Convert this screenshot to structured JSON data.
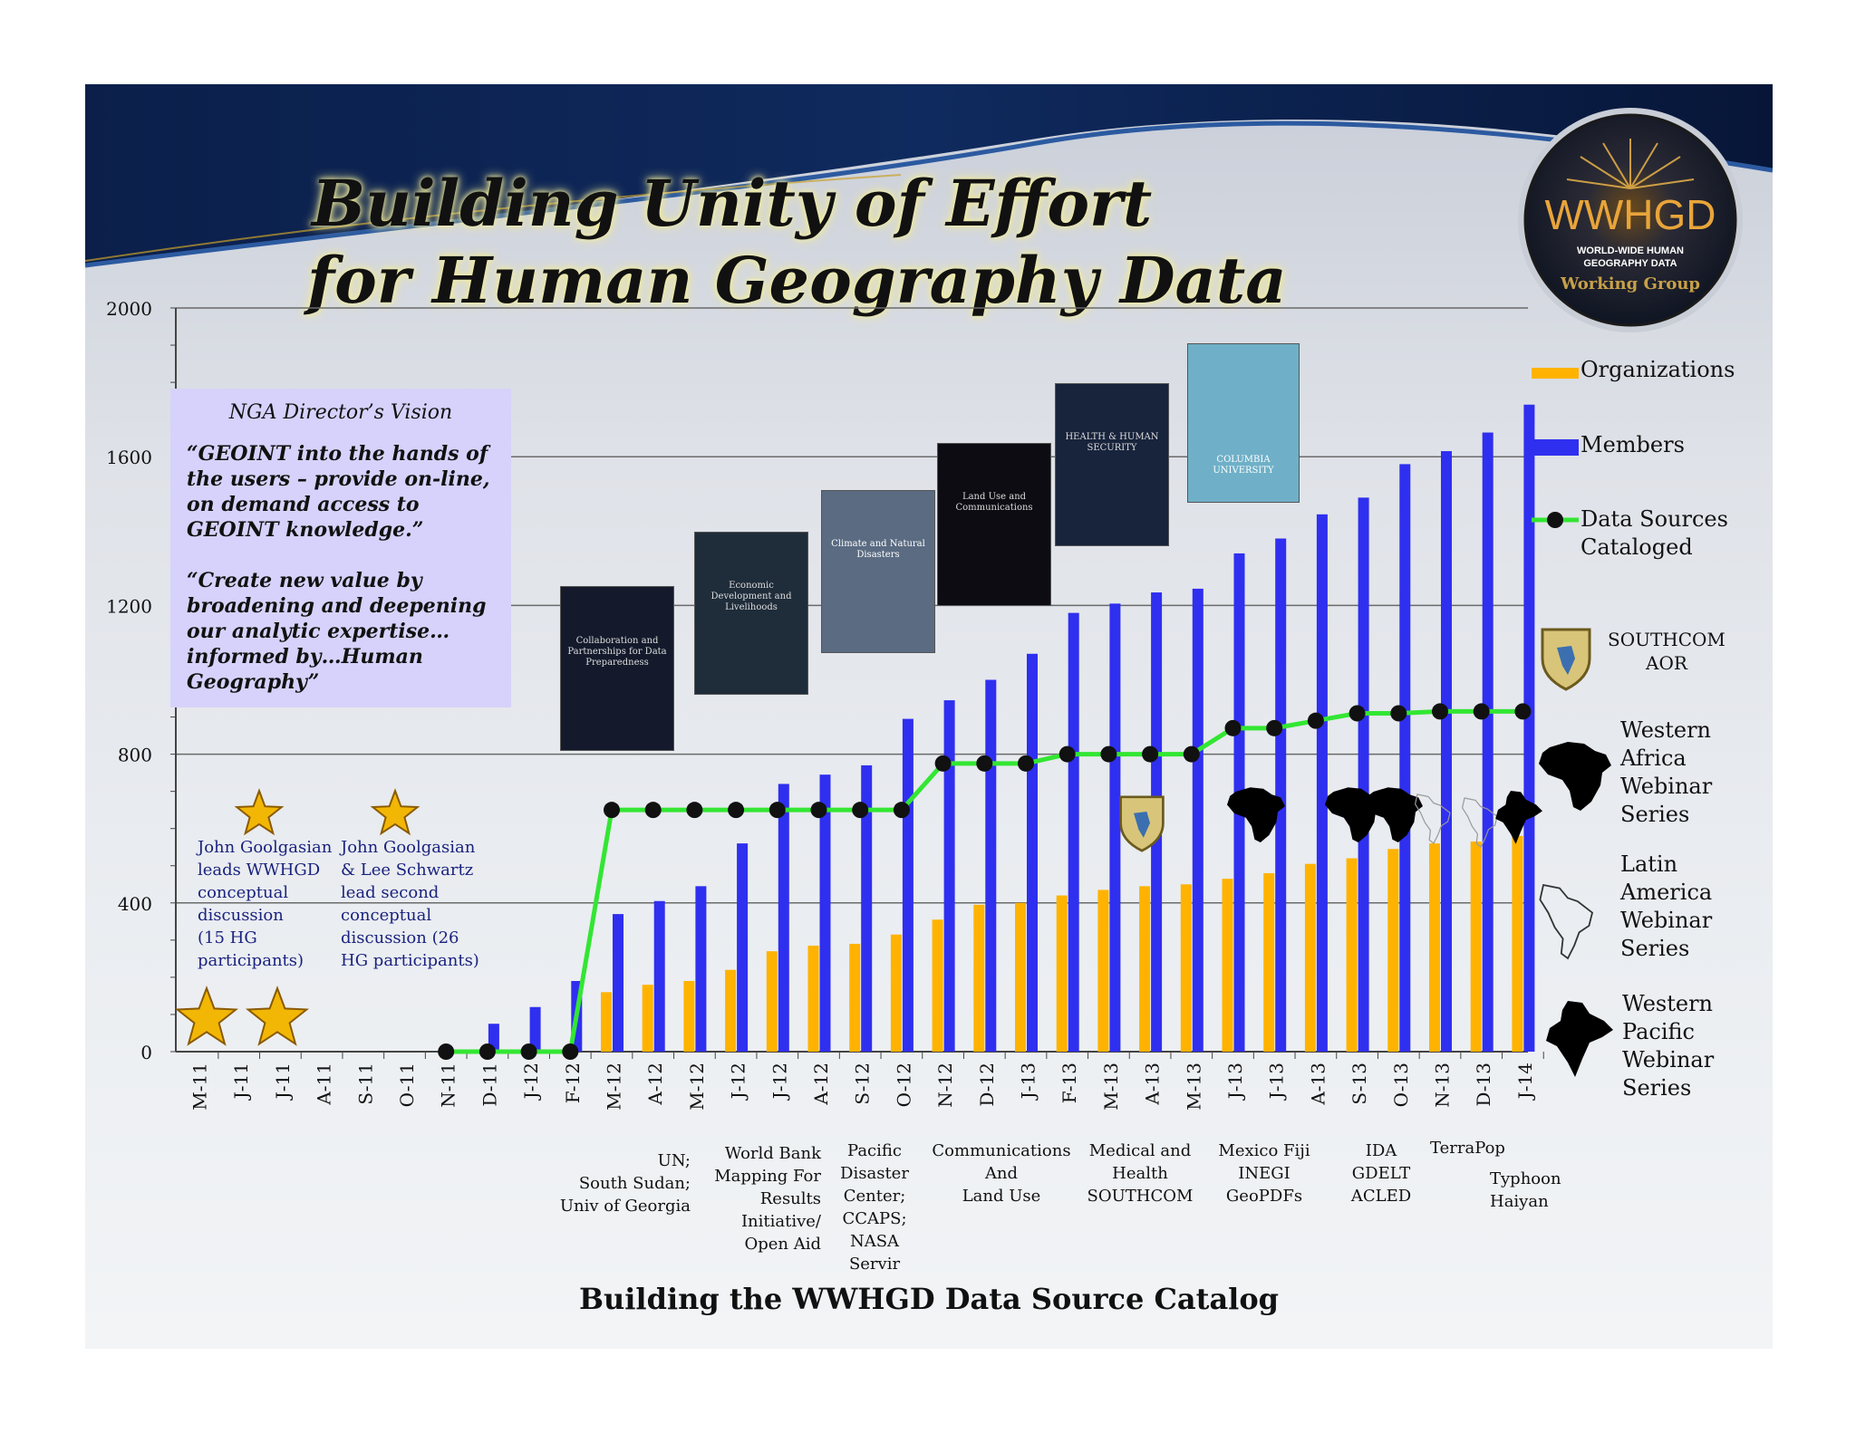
{
  "title": {
    "line1": "Building Unity of Effort",
    "line2": "for Human Geography Data"
  },
  "logo": {
    "name": "WWHGD",
    "subtitle_line1": "WORLD-WIDE HUMAN",
    "subtitle_line2": "GEOGRAPHY DATA",
    "tagline": "Working Group"
  },
  "vision": {
    "heading": "NGA Director’s Vision",
    "quote1": "“GEOINT into the hands of the users – provide on-line, on demand access to GEOINT knowledge.”",
    "quote2": "“Create new value by broadening and deepening our analytic expertise… informed by…Human Geography”"
  },
  "milestones": [
    {
      "lines": [
        "John Goolgasian",
        "leads WWHGD",
        "conceptual",
        "discussion",
        "(15 HG",
        "participants)"
      ]
    },
    {
      "lines": [
        "John Goolgasian",
        "& Lee Schwartz",
        "lead second",
        "conceptual",
        "discussion (26",
        "HG participants)"
      ]
    }
  ],
  "legend": {
    "organizations": "Organizations",
    "members": "Members",
    "data_sources_line1": "Data Sources",
    "data_sources_line2": "Cataloged"
  },
  "side_notes": {
    "southcom_line1": "SOUTHCOM",
    "southcom_line2": "AOR",
    "western_africa": [
      "Western",
      "Africa",
      "Webinar",
      "Series"
    ],
    "latin_america": [
      "Latin",
      "America",
      "Webinar",
      "Series"
    ],
    "western_pacific": [
      "Western",
      "Pacific",
      "Webinar",
      "Series"
    ]
  },
  "posters": [
    {
      "title": "Collaboration and Partnerships for Data Preparedness"
    },
    {
      "title": "Economic Development and Livelihoods"
    },
    {
      "title": "Climate and Natural Disasters"
    },
    {
      "title": "Land Use and Communications"
    },
    {
      "title": "HEALTH & HUMAN SECURITY"
    },
    {
      "title": "COLUMBIA UNIVERSITY"
    }
  ],
  "bottom_notes": [
    {
      "lines": [
        "UN;",
        "South Sudan;",
        "Univ of Georgia"
      ]
    },
    {
      "lines": [
        "World Bank",
        "Mapping For",
        "Results",
        "Initiative/",
        "Open Aid"
      ]
    },
    {
      "lines": [
        "Pacific",
        "Disaster",
        "Center;",
        "CCAPS;",
        "NASA",
        "Servir"
      ]
    },
    {
      "lines": [
        "Communications",
        "And",
        "Land Use"
      ]
    },
    {
      "lines": [
        "Medical and",
        "Health",
        "SOUTHCOM"
      ]
    },
    {
      "lines": [
        "Mexico  Fiji",
        "INEGI",
        "GeoPDFs"
      ]
    },
    {
      "lines": [
        "IDA",
        "GDELT",
        "ACLED"
      ]
    },
    {
      "lines": [
        "TerraPop"
      ]
    },
    {
      "lines": [
        "Typhoon",
        "Haiyan"
      ]
    }
  ],
  "footer_title": "Building the WWHGD Data Source Catalog",
  "colors": {
    "organizations": "#FFB300",
    "members": "#2F2FF0",
    "data_sources": "#33E633",
    "markers": "#111111",
    "star": "#F2B705"
  },
  "chart_data": {
    "type": "bar",
    "categories": [
      "M-11",
      "J-11",
      "J-11",
      "A-11",
      "S-11",
      "O-11",
      "N-11",
      "D-11",
      "J-12",
      "F-12",
      "M-12",
      "A-12",
      "M-12",
      "J-12",
      "J-12",
      "A-12",
      "S-12",
      "O-12",
      "N-12",
      "D-12",
      "J-13",
      "F-13",
      "M-13",
      "A-13",
      "M-13",
      "J-13",
      "J-13",
      "A-13",
      "S-13",
      "O-13",
      "N-13",
      "D-13",
      "J-14"
    ],
    "ylim": [
      0,
      2000
    ],
    "yticks": [
      0,
      400,
      800,
      1200,
      1600,
      2000
    ],
    "grid": true,
    "legend_position": "right",
    "series": [
      {
        "name": "Organizations",
        "kind": "bar",
        "values": [
          null,
          null,
          null,
          null,
          null,
          null,
          null,
          null,
          null,
          null,
          160,
          180,
          190,
          220,
          270,
          285,
          290,
          315,
          355,
          395,
          400,
          420,
          435,
          445,
          450,
          465,
          480,
          505,
          520,
          545,
          560,
          565,
          580
        ]
      },
      {
        "name": "Members",
        "kind": "bar",
        "values": [
          null,
          null,
          null,
          null,
          null,
          null,
          null,
          75,
          120,
          190,
          370,
          405,
          445,
          560,
          720,
          745,
          770,
          895,
          945,
          1000,
          1070,
          1180,
          1205,
          1235,
          1245,
          1340,
          1380,
          1445,
          1490,
          1580,
          1615,
          1665,
          1740
        ]
      },
      {
        "name": "Data Sources Cataloged",
        "kind": "line",
        "values": [
          null,
          null,
          null,
          null,
          null,
          null,
          0,
          0,
          0,
          0,
          650,
          650,
          650,
          650,
          650,
          650,
          650,
          650,
          775,
          775,
          775,
          800,
          800,
          800,
          800,
          870,
          870,
          890,
          910,
          910,
          915,
          915,
          915
        ]
      }
    ]
  }
}
